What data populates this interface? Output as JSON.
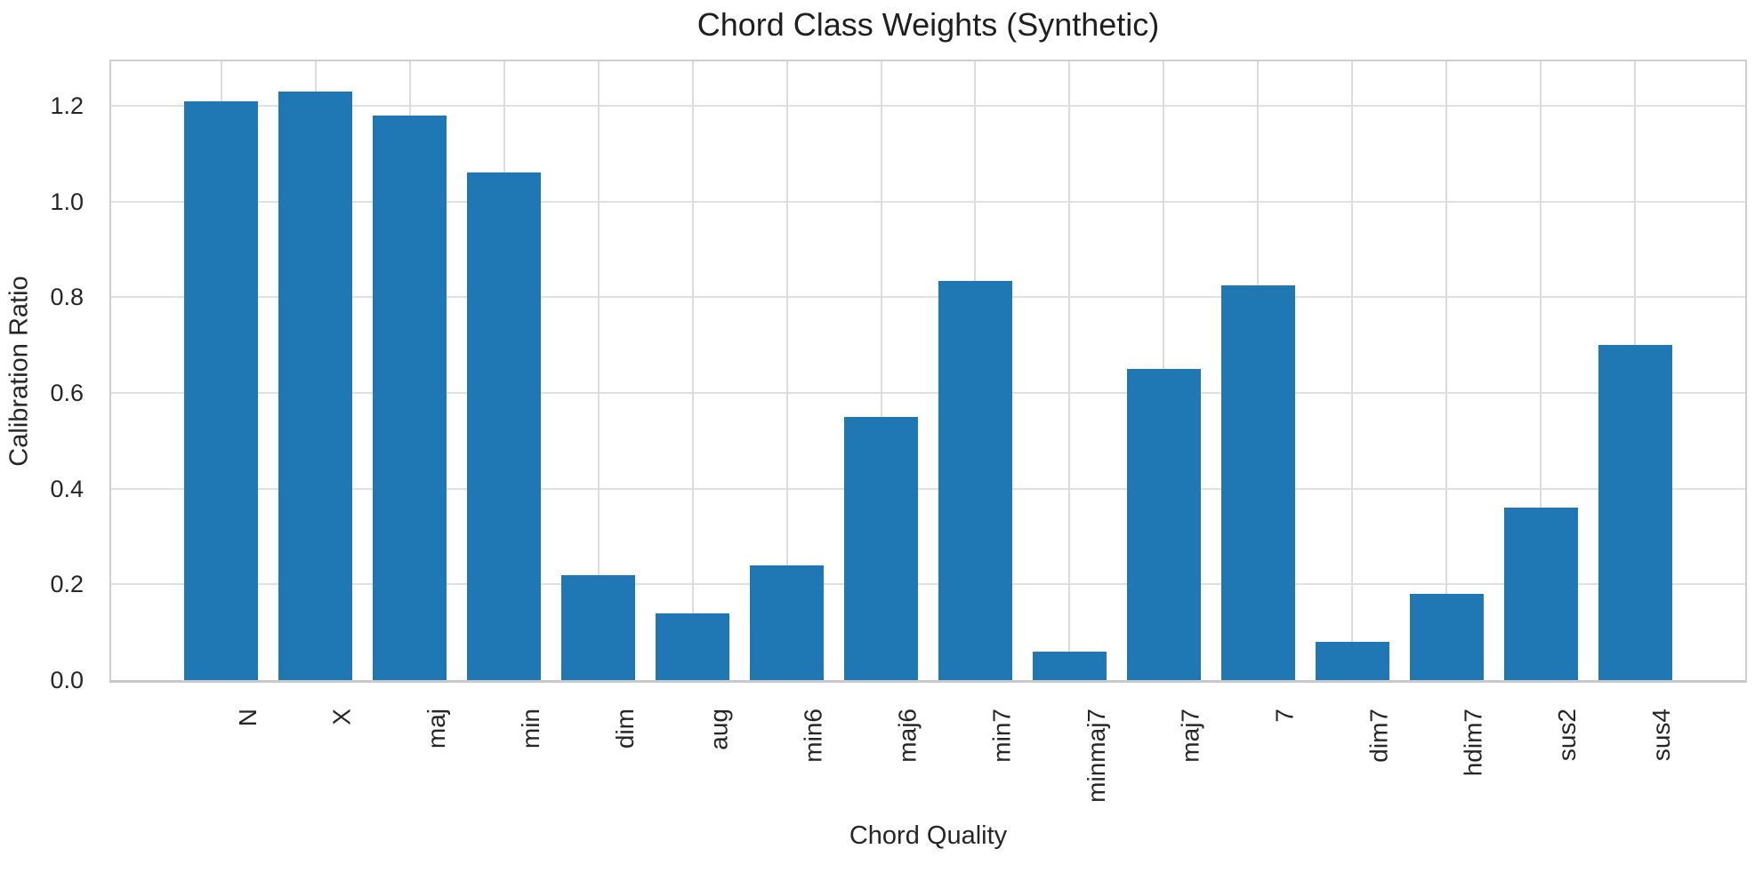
{
  "chart_data": {
    "type": "bar",
    "title": "Chord Class Weights (Synthetic)",
    "xlabel": "Chord Quality",
    "ylabel": "Calibration Ratio",
    "categories": [
      "N",
      "X",
      "maj",
      "min",
      "dim",
      "aug",
      "min6",
      "maj6",
      "min7",
      "minmaj7",
      "maj7",
      "7",
      "dim7",
      "hdim7",
      "sus2",
      "sus4"
    ],
    "values": [
      1.21,
      1.23,
      1.18,
      1.06,
      0.22,
      0.14,
      0.24,
      0.55,
      0.835,
      0.06,
      0.65,
      0.825,
      0.08,
      0.18,
      0.36,
      0.7
    ],
    "ytick_labels": [
      "0.0",
      "0.2",
      "0.4",
      "0.6",
      "0.8",
      "1.0",
      "1.2"
    ],
    "ytick_values": [
      0.0,
      0.2,
      0.4,
      0.6,
      0.8,
      1.0,
      1.2
    ],
    "ylim": [
      0,
      1.293
    ],
    "grid": true,
    "legend_position": "none",
    "x_tick_rotation_deg": 90,
    "colors": {
      "bar": "#1f77b4",
      "grid": "#e0e0e0",
      "grid_vertical": "#dcdcdc",
      "spine": "#cfcfcf",
      "text": "#262626",
      "background": "#ffffff"
    }
  }
}
